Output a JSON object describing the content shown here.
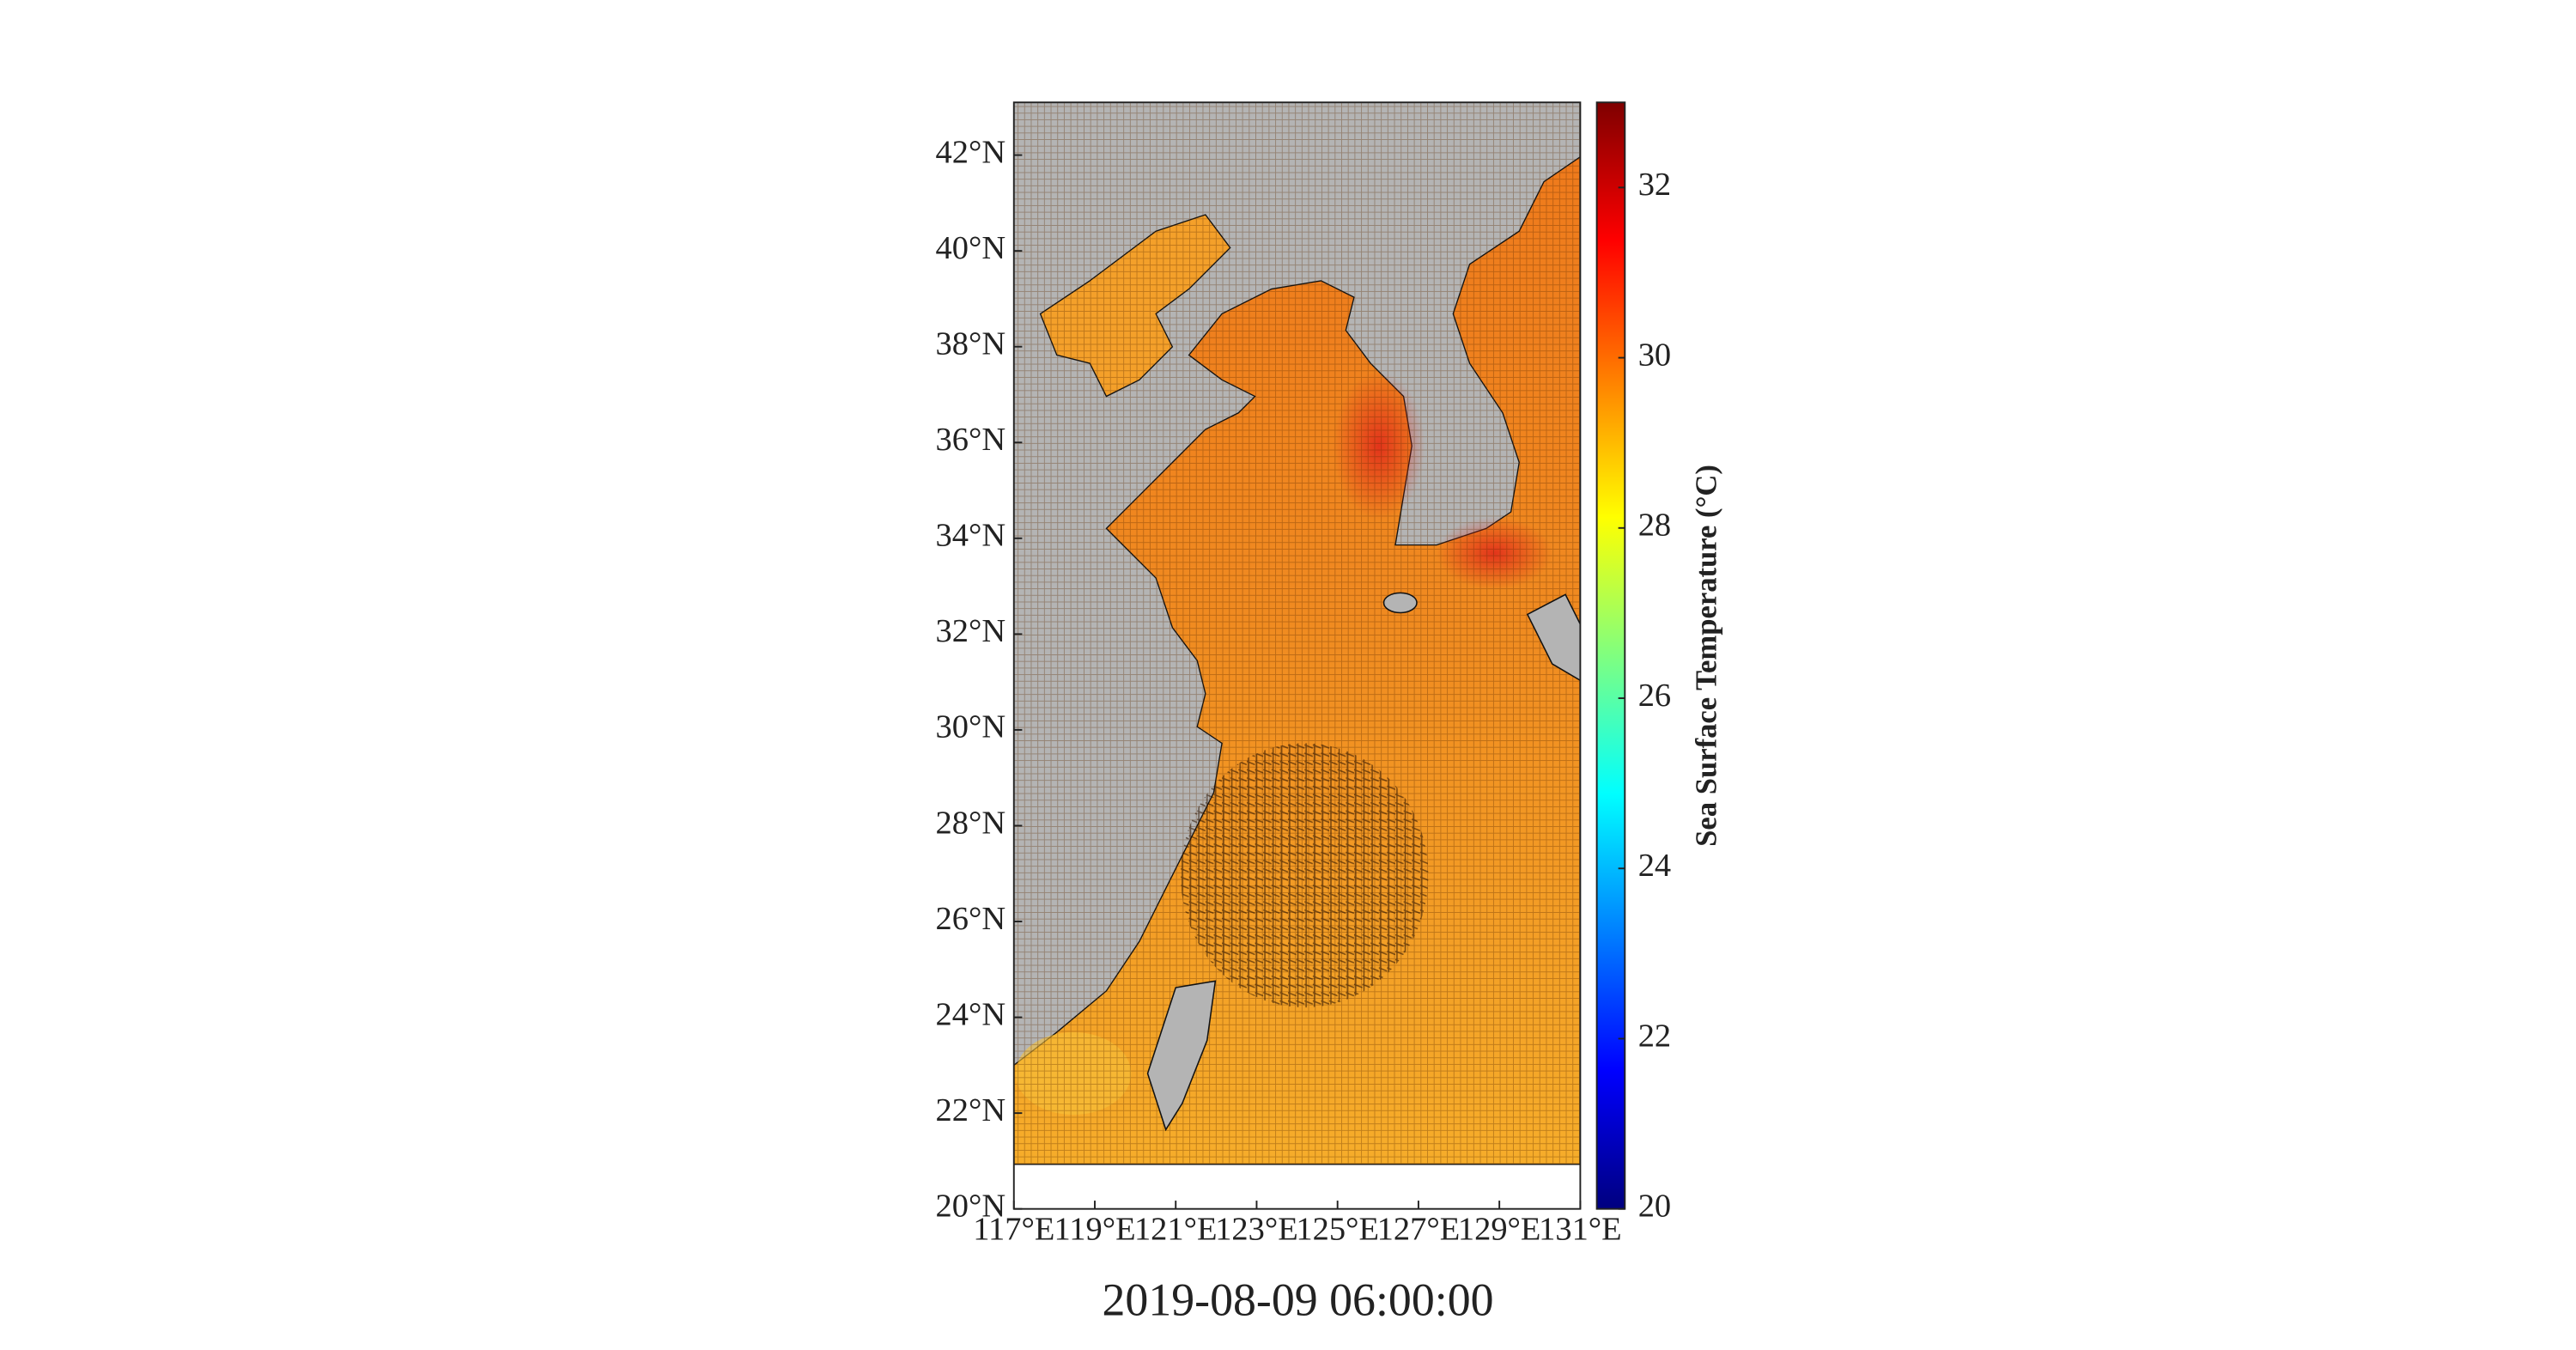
{
  "map": {
    "title": "2019-08-09 06:00:00",
    "xlim": [
      117,
      131
    ],
    "ylim": [
      20,
      43.1
    ],
    "xticks": [
      {
        "value": 117,
        "label": "117°E"
      },
      {
        "value": 119,
        "label": "119°E"
      },
      {
        "value": 121,
        "label": "121°E"
      },
      {
        "value": 123,
        "label": "123°E"
      },
      {
        "value": 125,
        "label": "125°E"
      },
      {
        "value": 127,
        "label": "127°E"
      },
      {
        "value": 129,
        "label": "129°E"
      },
      {
        "value": 131,
        "label": "131°E"
      }
    ],
    "yticks": [
      {
        "value": 20,
        "label": "20°N"
      },
      {
        "value": 22,
        "label": "22°N"
      },
      {
        "value": 24,
        "label": "24°N"
      },
      {
        "value": 26,
        "label": "26°N"
      },
      {
        "value": 28,
        "label": "28°N"
      },
      {
        "value": 30,
        "label": "30°N"
      },
      {
        "value": 32,
        "label": "32°N"
      },
      {
        "value": 34,
        "label": "34°N"
      },
      {
        "value": 36,
        "label": "36°N"
      },
      {
        "value": 38,
        "label": "38°N"
      },
      {
        "value": 40,
        "label": "40°N"
      },
      {
        "value": 42,
        "label": "42°N"
      }
    ],
    "colorbar": {
      "label": "Sea Surface Temperature (°C)",
      "lim": [
        20,
        33
      ],
      "ticks": [
        20,
        22,
        24,
        26,
        28,
        30,
        32
      ]
    }
  }
}
